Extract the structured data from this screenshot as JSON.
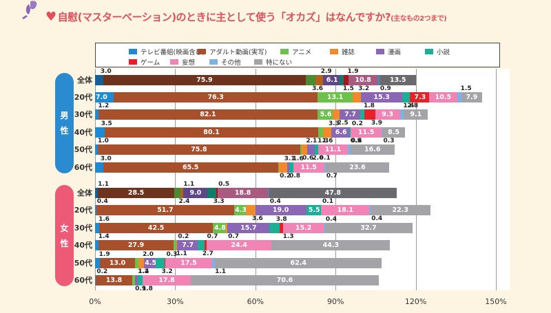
{
  "title": {
    "main": "自慰(マスターベーション)のときに主として使う「オカズ」はなんですか?",
    "sub": "(主なもの2つまで)",
    "icon": "heart-icon",
    "decoration": "butterfly-icon"
  },
  "chart_data": {
    "type": "bar",
    "orientation": "horizontal",
    "stacked": true,
    "title": "自慰(マスターベーション)のときに主として使う「オカズ」はなんですか?(主なもの2つまで)",
    "xlabel": "",
    "ylabel": "",
    "xlim": [
      0,
      150
    ],
    "x_ticks": [
      "0%",
      "30%",
      "60%",
      "90%",
      "120%",
      "150%"
    ],
    "grid": true,
    "legend_position": "top",
    "groups": [
      {
        "name": "男性",
        "color": "#2a8bd0",
        "categories": [
          "全体",
          "20代",
          "30代",
          "40代",
          "50代",
          "60代"
        ]
      },
      {
        "name": "女性",
        "color": "#ec5a76",
        "categories": [
          "全体",
          "20代",
          "30代",
          "40代",
          "50代",
          "60代"
        ]
      }
    ],
    "series": [
      {
        "name": "テレビ番組(映画含む)",
        "color": "#1e8ad2",
        "dark": "#155f95",
        "values": [
          3.0,
          7.0,
          1.2,
          3.5,
          1.0,
          3.0,
          1.1,
          0.4,
          1.6,
          1.4,
          1.9,
          0.2
        ]
      },
      {
        "name": "アダルト動画(実写)",
        "color": "#a84f2c",
        "dark": "#6e331d",
        "values": [
          75.9,
          76.3,
          82.1,
          80.1,
          75.8,
          65.5,
          28.5,
          51.7,
          42.5,
          27.9,
          13.0,
          13.8
        ]
      },
      {
        "name": "アニメ",
        "color": "#6cc14a",
        "dark": "#4a8a30",
        "values": [
          3.6,
          13.1,
          5.6,
          1.6,
          0.6,
          0.2,
          2.4,
          4.3,
          4.8,
          1.1,
          1.4,
          0.9
        ]
      },
      {
        "name": "雑誌",
        "color": "#f28a2a",
        "dark": "#b3621a",
        "values": [
          2.9,
          3.2,
          2.5,
          3.3,
          2.1,
          3.1,
          1.1,
          3.6,
          0.7,
          0.2,
          2.0,
          0
        ]
      },
      {
        "name": "漫画",
        "color": "#8a66b5",
        "dark": "#5f4687",
        "values": [
          6.1,
          15.3,
          7.7,
          6.6,
          2.6,
          0.8,
          9.0,
          19.0,
          15.7,
          7.7,
          4.5,
          1.2
        ]
      },
      {
        "name": "小説",
        "color": "#18b096",
        "dark": "#0f7d6a",
        "values": [
          1.5,
          2.8,
          1.8,
          0.4,
          1.3,
          1.6,
          3.3,
          5.5,
          3.8,
          2.7,
          3.2,
          1.8
        ]
      },
      {
        "name": "ゲーム",
        "color": "#e8202a",
        "dark": "#a8151c",
        "values": [
          1.9,
          7.3,
          3.9,
          0.2,
          0.1,
          0,
          0.5,
          0.1,
          1.3,
          0.7,
          0.3,
          0
        ]
      },
      {
        "name": "妄想",
        "color": "#f084b4",
        "dark": "#a95a80",
        "values": [
          10.8,
          10.5,
          9.3,
          11.5,
          11.1,
          11.5,
          18.8,
          18.1,
          15.2,
          24.4,
          17.5,
          17.8
        ]
      },
      {
        "name": "その他",
        "color": "#7eb2e2",
        "dark": "#5780a6",
        "values": [
          0.9,
          1.5,
          1.4,
          0.3,
          0.9,
          0.7,
          0.4,
          0.4,
          0.4,
          0,
          1.1,
          0
        ]
      },
      {
        "name": "特にない",
        "color": "#a4a4a8",
        "dark": "#6a6a6e",
        "values": [
          13.5,
          7.9,
          9.1,
          8.5,
          16.6,
          23.6,
          47.8,
          22.3,
          32.7,
          44.3,
          62.4,
          70.6
        ]
      }
    ]
  }
}
